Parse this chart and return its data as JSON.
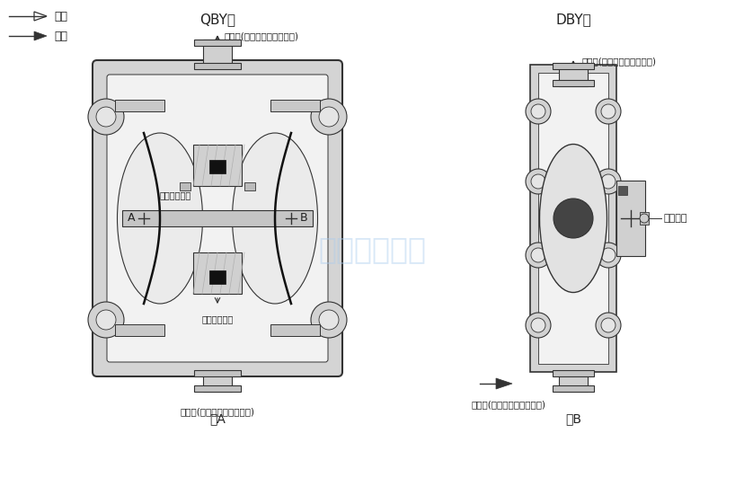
{
  "title_left": "QBY型",
  "title_right": "DBY型",
  "legend_air": "气流",
  "legend_liquid": "液流",
  "label_outlet": "泵出口(螺纹联接或法兰联接)",
  "label_inlet": "泵进口(螺纹联接或法兰联接)",
  "label_air_out": "压缩空气出口",
  "label_air_in": "压缩空气进口",
  "label_A": "A",
  "label_B": "B",
  "label_linkage": "连杆机构",
  "label_figA": "图A",
  "label_figB": "图B",
  "label_outlet_B": "泵出口(螺纹联接或法兰联接)",
  "label_inlet_B": "泵进口(螺纹联接或法兰联接)",
  "watermark": "永嘉龙洋泵阀",
  "bg_color": "#ffffff",
  "line_color": "#333333",
  "fill_light": "#e8e8e8",
  "fill_mid": "#cccccc",
  "fill_dark": "#555555",
  "text_color": "#222222",
  "watermark_color": "#aaccee"
}
